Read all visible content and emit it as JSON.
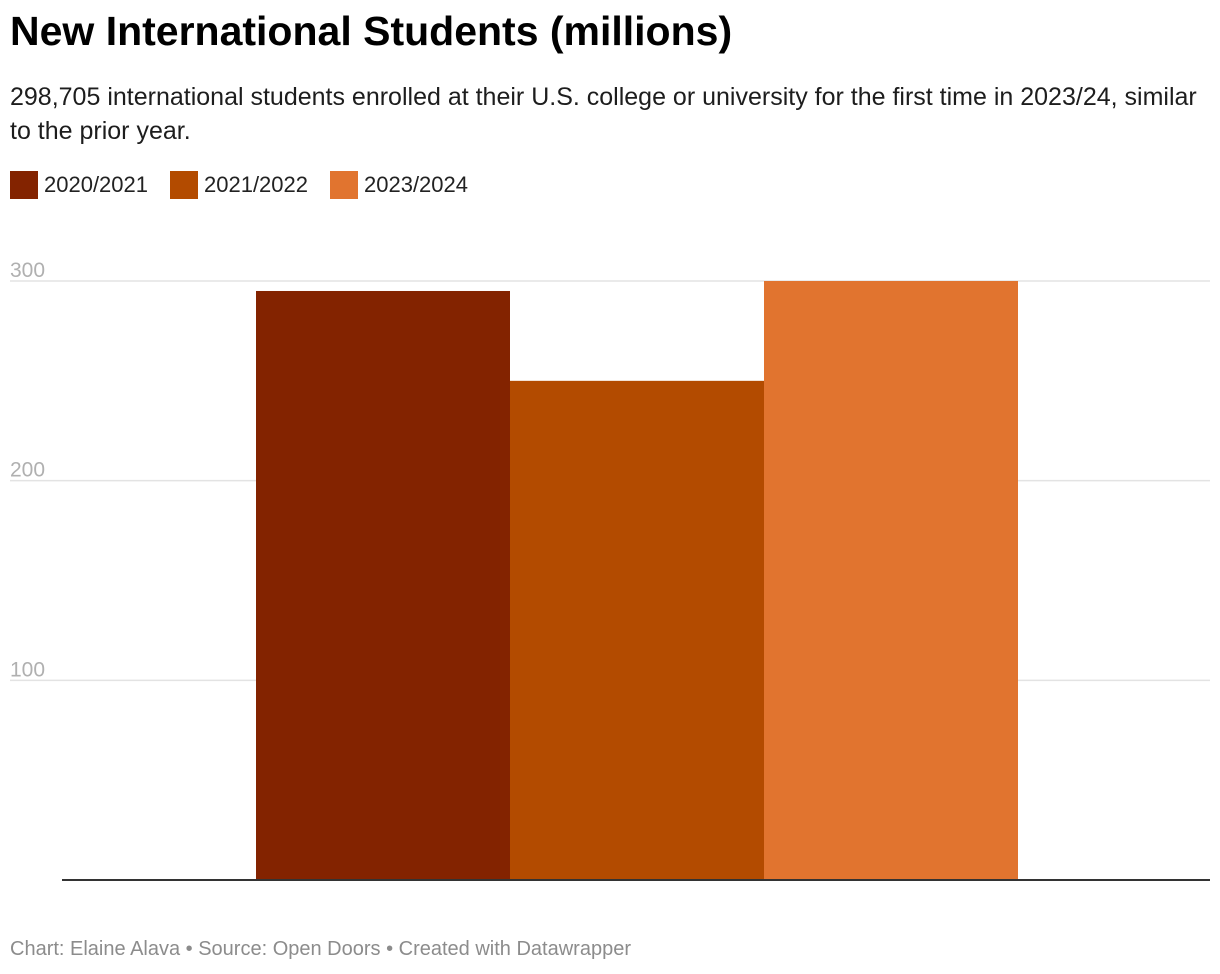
{
  "header": {
    "title": "New International Students (millions)",
    "subtitle": "298,705 international students enrolled at their U.S. college or university for the first time in 2023/24, similar to the prior year."
  },
  "footer": {
    "credit": "Chart: Elaine Alava • Source: Open Doors • Created with Datawrapper"
  },
  "chart_data": {
    "type": "bar",
    "categories": [
      ""
    ],
    "series": [
      {
        "name": "2020/2021",
        "color": "#832300",
        "values": [
          295
        ]
      },
      {
        "name": "2021/2022",
        "color": "#b34b00",
        "values": [
          250
        ]
      },
      {
        "name": "2023/2024",
        "color": "#e1742f",
        "values": [
          300
        ]
      }
    ],
    "yticks": [
      100,
      200,
      300
    ],
    "ylim": [
      0,
      300
    ],
    "grid": true,
    "legend_position": "top-left",
    "colors": {
      "gridline": "#e3e3e3",
      "baseline": "#333333",
      "tick_label": "#b0b0b0"
    }
  }
}
